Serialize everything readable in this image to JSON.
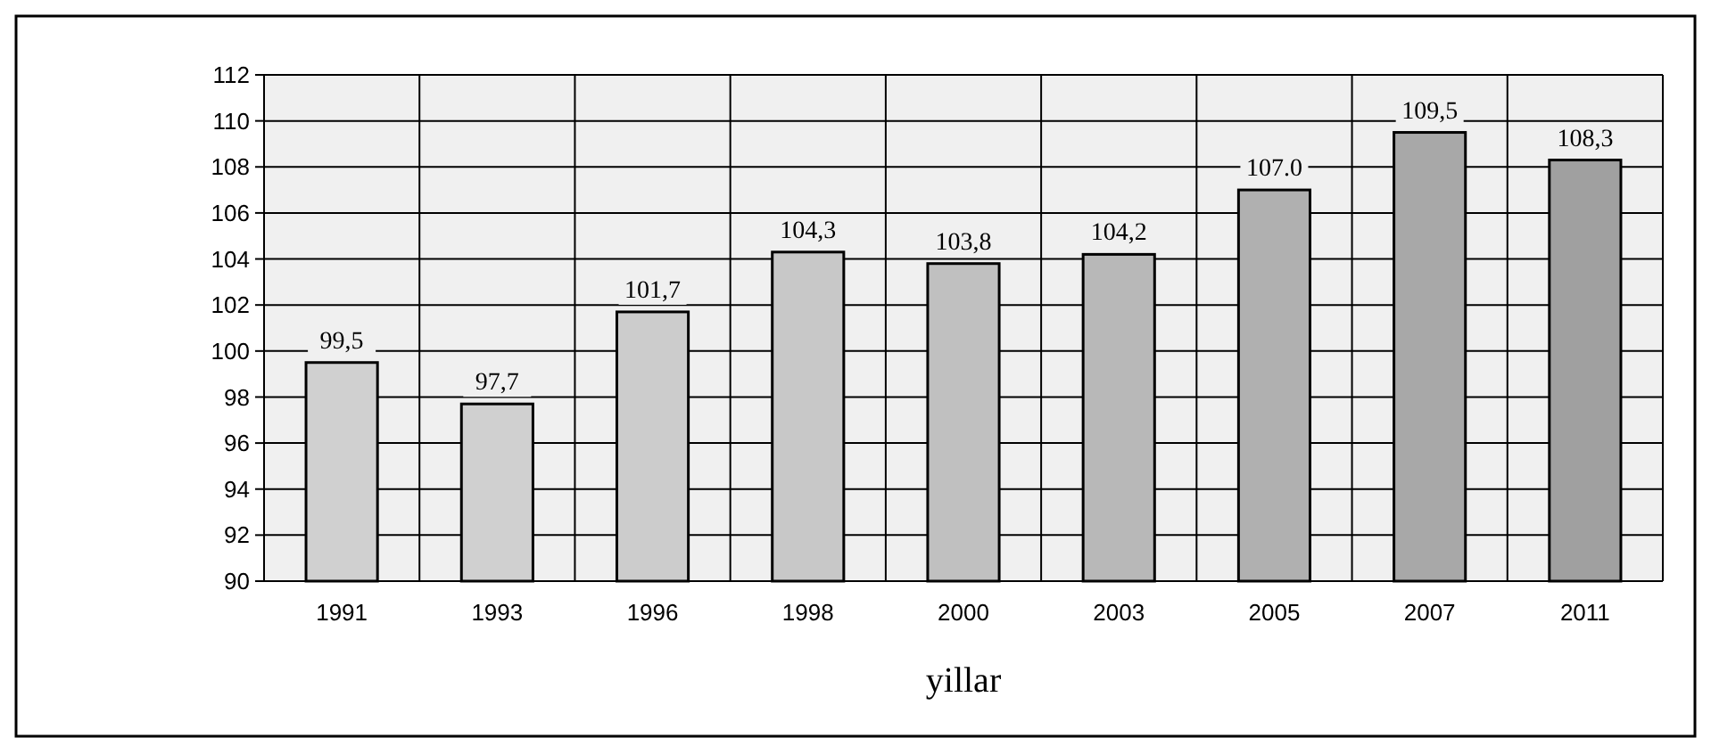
{
  "chart_data": {
    "type": "bar",
    "xlabel": "yillar",
    "categories": [
      "1991",
      "1993",
      "1996",
      "1998",
      "2000",
      "2003",
      "2005",
      "2007",
      "2011"
    ],
    "values": [
      99.5,
      97.7,
      101.7,
      104.3,
      103.8,
      104.2,
      107.0,
      109.5,
      108.3
    ],
    "value_labels": [
      "99,5",
      "97,7",
      "101,7",
      "104,3",
      "103,8",
      "104,2",
      "107.0",
      "109,5",
      "108,3"
    ],
    "colors": [
      "#d0d0d0",
      "#d0d0d0",
      "#cccccc",
      "#c8c8c8",
      "#c0c0c0",
      "#b8b8b8",
      "#b0b0b0",
      "#a8a8a8",
      "#a0a0a0"
    ],
    "ylim": [
      90,
      112
    ],
    "yticks": [
      90,
      92,
      94,
      96,
      98,
      100,
      102,
      104,
      106,
      108,
      110,
      112
    ],
    "grid": true
  }
}
